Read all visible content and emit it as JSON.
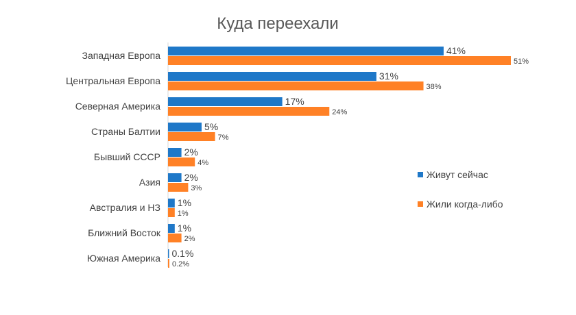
{
  "chart_data": {
    "type": "bar",
    "orientation": "horizontal",
    "title": "Куда переехали",
    "categories": [
      "Западная Европа",
      "Центральная Европа",
      "Северная Америка",
      "Страны Балтии",
      "Бывший СССР",
      "Азия",
      "Австралия и НЗ",
      "Ближний Восток",
      "Южная Америка"
    ],
    "series": [
      {
        "name": "Живут сейчас",
        "color": "#1F78C8",
        "values": [
          41,
          31,
          17,
          5,
          2,
          2,
          1,
          1,
          0.1
        ],
        "labels": [
          "41%",
          "31%",
          "17%",
          "5%",
          "2%",
          "2%",
          "1%",
          "1%",
          "0.1%"
        ]
      },
      {
        "name": "Жили когда-либо",
        "color": "#FF8126",
        "values": [
          51,
          38,
          24,
          7,
          4,
          3,
          1,
          2,
          0.2
        ],
        "labels": [
          "51%",
          "38%",
          "24%",
          "7%",
          "4%",
          "3%",
          "1%",
          "2%",
          "0.2%"
        ]
      }
    ],
    "xlabel": "",
    "ylabel": "",
    "xlim": [
      0,
      51
    ],
    "grid": false,
    "legend_position": "right"
  }
}
